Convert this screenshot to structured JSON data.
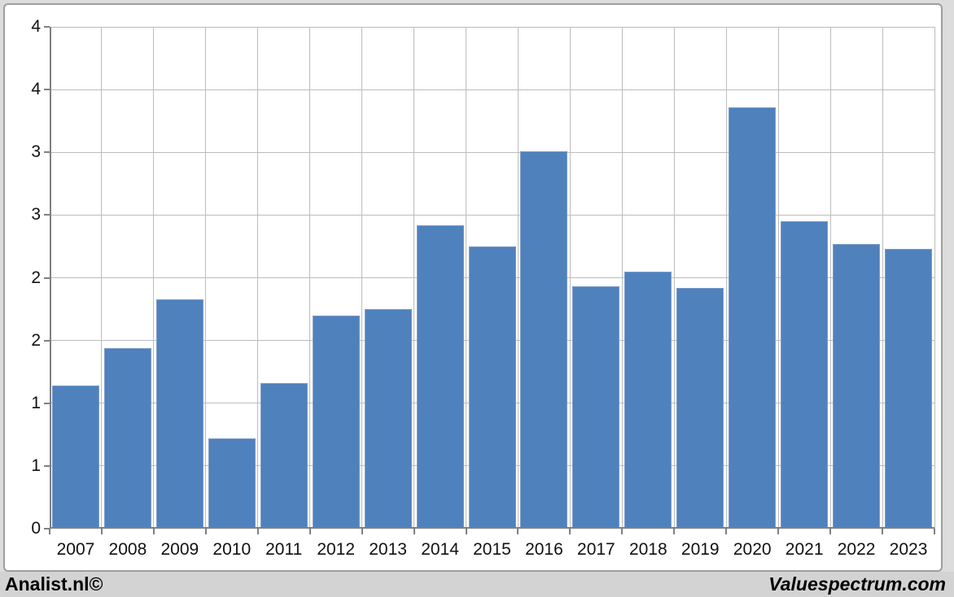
{
  "page": {
    "background": "#dcdcdc"
  },
  "panel": {
    "background": "#ffffff",
    "border_color": "#9d9d9d"
  },
  "footer": {
    "left_brand": "Analist.nl©",
    "right_brand": "Valuespectrum.com",
    "background": "#d3d3d3",
    "text_color": "#000000"
  },
  "chart_data": {
    "type": "bar",
    "title": "",
    "xlabel": "",
    "ylabel": "",
    "categories": [
      "2007",
      "2008",
      "2009",
      "2010",
      "2011",
      "2012",
      "2013",
      "2014",
      "2015",
      "2016",
      "2017",
      "2018",
      "2019",
      "2020",
      "2021",
      "2022",
      "2023"
    ],
    "values": [
      1.14,
      1.44,
      1.83,
      0.72,
      1.16,
      1.7,
      1.75,
      2.42,
      2.25,
      3.01,
      1.93,
      2.05,
      1.92,
      3.36,
      2.45,
      2.27,
      2.23
    ],
    "ylim": [
      0,
      4
    ],
    "ytick_interval": 0.5,
    "ytick_labels_bottom_to_top": [
      "0",
      "1",
      "1",
      "2",
      "2",
      "3",
      "3",
      "4",
      "4"
    ],
    "grid": true,
    "legend": "none",
    "bar_color": "#4f81bd",
    "bar_border_color": "#7b9cc9",
    "gridline_color": "#bcbcbc",
    "axis_color": "#808080",
    "tick_label_color": "#111111"
  }
}
